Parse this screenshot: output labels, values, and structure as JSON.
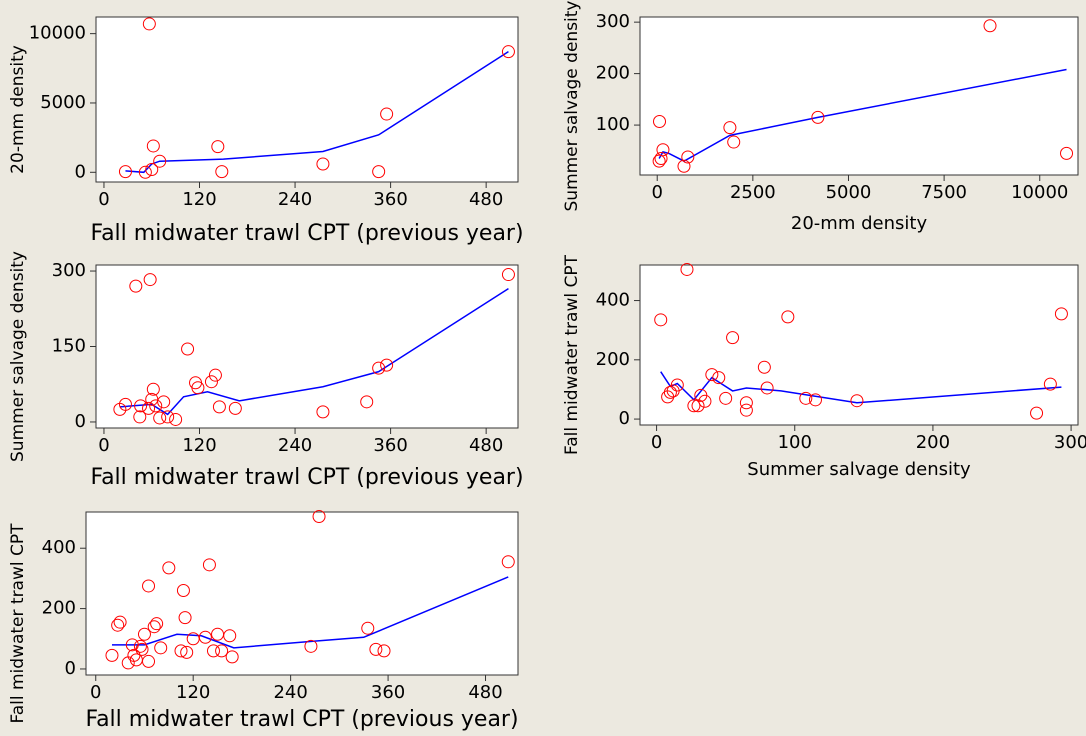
{
  "chart_data": [
    {
      "type": "scatter",
      "x_label": "Fall midwater trawl CPT (previous year)",
      "y_label": "20-mm density",
      "x": [
        27,
        52,
        57,
        60,
        62,
        70,
        143,
        148,
        275,
        345,
        355,
        508
      ],
      "values": [
        50,
        0,
        10700,
        200,
        1900,
        800,
        1850,
        50,
        600,
        50,
        4200,
        8700
      ],
      "color": "#ff0000",
      "line": {
        "x": [
          27,
          50,
          60,
          70,
          150,
          275,
          345,
          508
        ],
        "values": [
          100,
          0,
          600,
          800,
          950,
          1500,
          2700,
          8700
        ],
        "color": "#0000ff"
      },
      "xlim": [
        -10,
        520
      ],
      "ylim": [
        -700,
        11200
      ],
      "xticks": [
        0,
        120,
        240,
        360,
        480
      ],
      "yticks": [
        0,
        5000,
        10000
      ]
    },
    {
      "type": "scatter",
      "x_label": "20-mm density",
      "y_label": "Summer salvage density",
      "x": [
        50,
        100,
        60,
        150,
        700,
        800,
        1900,
        2000,
        4200,
        8700,
        10700
      ],
      "values": [
        30,
        35,
        107,
        52,
        20,
        38,
        95,
        67,
        115,
        293,
        45
      ],
      "color": "#ff0000",
      "line": {
        "x": [
          50,
          150,
          300,
          700,
          1900,
          4200,
          10700
        ],
        "values": [
          35,
          48,
          45,
          30,
          80,
          115,
          208
        ],
        "color": "#0000ff"
      },
      "xlim": [
        -450,
        11000
      ],
      "ylim": [
        3,
        310
      ],
      "xticks": [
        0,
        2500,
        5000,
        7500,
        10000
      ],
      "yticks": [
        100,
        200,
        300
      ]
    },
    {
      "type": "scatter",
      "x_label": "Fall midwater trawl CPT (previous year)",
      "y_label": "Summer salvage density",
      "x": [
        20,
        27,
        40,
        45,
        46,
        58,
        56,
        60,
        62,
        65,
        70,
        75,
        80,
        90,
        105,
        115,
        118,
        135,
        140,
        145,
        165,
        275,
        330,
        345,
        355,
        508
      ],
      "values": [
        25,
        35,
        270,
        10,
        32,
        283,
        27,
        45,
        65,
        32,
        8,
        40,
        10,
        5,
        145,
        78,
        68,
        80,
        93,
        30,
        27,
        20,
        40,
        107,
        113,
        293
      ],
      "color": "#ff0000",
      "line": {
        "x": [
          20,
          60,
          80,
          100,
          130,
          170,
          275,
          345,
          508
        ],
        "values": [
          30,
          35,
          15,
          50,
          60,
          42,
          70,
          100,
          265
        ],
        "color": "#0000ff"
      },
      "xlim": [
        -10,
        520
      ],
      "ylim": [
        -12,
        312
      ],
      "xticks": [
        0,
        120,
        240,
        360,
        480
      ],
      "yticks": [
        0,
        150,
        300
      ]
    },
    {
      "type": "scatter",
      "x_label": "Summer salvage density",
      "y_label": "Fall midwater trawl CPT",
      "x": [
        3,
        8,
        10,
        12,
        15,
        22,
        27,
        30,
        32,
        35,
        40,
        45,
        50,
        55,
        65,
        65,
        78,
        80,
        95,
        108,
        115,
        145,
        275,
        285,
        293
      ],
      "values": [
        335,
        75,
        90,
        95,
        115,
        505,
        45,
        45,
        80,
        60,
        150,
        140,
        70,
        275,
        55,
        30,
        175,
        105,
        345,
        70,
        65,
        62,
        20,
        118,
        355
      ],
      "color": "#ff0000",
      "line": {
        "x": [
          3,
          10,
          15,
          27,
          40,
          55,
          65,
          90,
          145,
          293
        ],
        "values": [
          160,
          110,
          120,
          65,
          140,
          95,
          105,
          95,
          55,
          108
        ],
        "color": "#0000ff"
      },
      "xlim": [
        -12,
        305
      ],
      "ylim": [
        -20,
        520
      ],
      "xticks": [
        0,
        100,
        200,
        300
      ],
      "yticks": [
        0,
        200,
        400
      ]
    },
    {
      "type": "scatter",
      "x_label": "Fall midwater trawl CPT (previous year)",
      "y_label": "Fall midwater trawl CPT",
      "x": [
        20,
        27,
        30,
        40,
        45,
        47,
        50,
        55,
        57,
        60,
        65,
        65,
        72,
        75,
        80,
        90,
        105,
        108,
        110,
        112,
        120,
        135,
        140,
        145,
        150,
        155,
        165,
        168,
        265,
        275,
        335,
        345,
        355,
        508
      ],
      "values": [
        45,
        145,
        155,
        20,
        80,
        45,
        30,
        75,
        65,
        115,
        275,
        25,
        140,
        150,
        70,
        335,
        60,
        260,
        170,
        55,
        100,
        105,
        345,
        60,
        115,
        60,
        110,
        40,
        75,
        505,
        135,
        65,
        60,
        355
      ],
      "color": "#ff0000",
      "line": {
        "x": [
          20,
          60,
          100,
          130,
          170,
          260,
          330,
          508
        ],
        "values": [
          80,
          80,
          115,
          110,
          70,
          90,
          105,
          305
        ],
        "color": "#0000ff"
      },
      "xlim": [
        -12,
        520
      ],
      "ylim": [
        -20,
        520
      ],
      "xticks": [
        0,
        120,
        240,
        360,
        480
      ],
      "yticks": [
        0,
        200,
        400
      ]
    }
  ]
}
